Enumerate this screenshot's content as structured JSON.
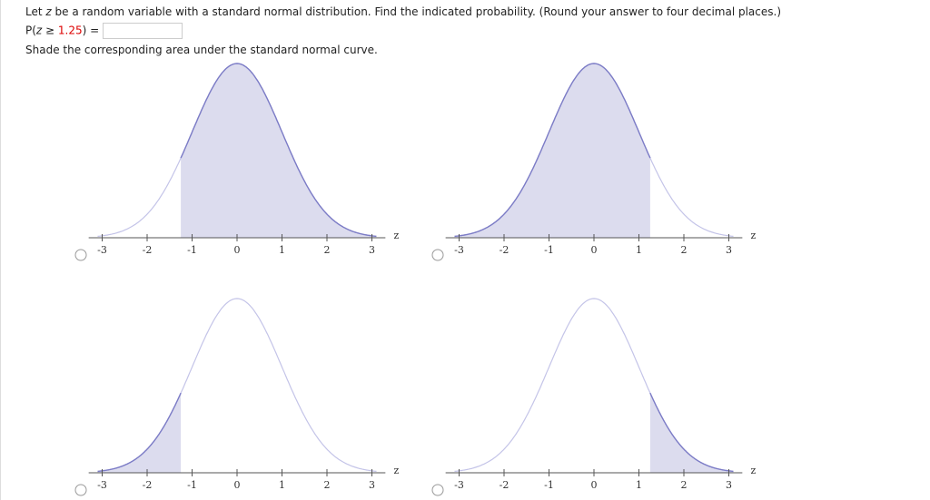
{
  "question": {
    "pre": "Let ",
    "var": "z",
    "post": " be a random variable with a standard normal distribution. Find the indicated probability. (Round your answer to four decimal places.)"
  },
  "prompt": {
    "open": "P(",
    "var": "z",
    "op": " ≥ ",
    "value": 1.25,
    "close": ") ="
  },
  "instruction": "Shade the corresponding area under the standard normal curve.",
  "axis": {
    "label": "z",
    "ticks": [
      -3,
      -2,
      -1,
      0,
      1,
      2,
      3
    ],
    "xlim": [
      -3.3,
      3.3
    ]
  },
  "options": [
    {
      "shade_side": "right",
      "shade_at": -1.25
    },
    {
      "shade_side": "left",
      "shade_at": 1.25
    },
    {
      "shade_side": "left",
      "shade_at": -1.25
    },
    {
      "shade_side": "right",
      "shade_at": 1.25
    }
  ]
}
